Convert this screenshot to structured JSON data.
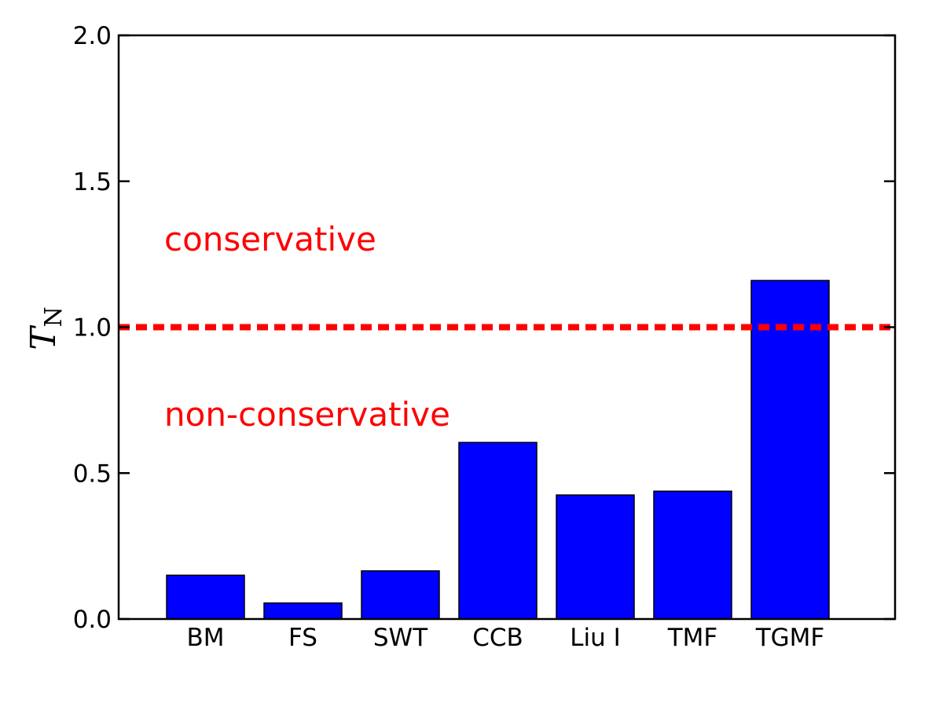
{
  "chart_data": {
    "type": "bar",
    "categories": [
      "BM",
      "FS",
      "SWT",
      "CCB",
      "Liu I",
      "TMF",
      "TGMF"
    ],
    "values": [
      0.15,
      0.055,
      0.165,
      0.605,
      0.425,
      0.438,
      1.16
    ],
    "title": "",
    "xlabel": "",
    "ylabel": "T",
    "ylabel_subscript": "N",
    "ylim": [
      0,
      2.0
    ],
    "yticks": [
      "0.0",
      "0.5",
      "1.0",
      "1.5",
      "2.0"
    ],
    "grid": false,
    "bar_color": "#0000ff",
    "reference_line": {
      "y": 1.0,
      "style": "dashed",
      "color": "#ff0000"
    },
    "annotations": [
      {
        "text": "conservative",
        "color": "#ff0000"
      },
      {
        "text": "non-conservative",
        "color": "#ff0000"
      }
    ]
  }
}
